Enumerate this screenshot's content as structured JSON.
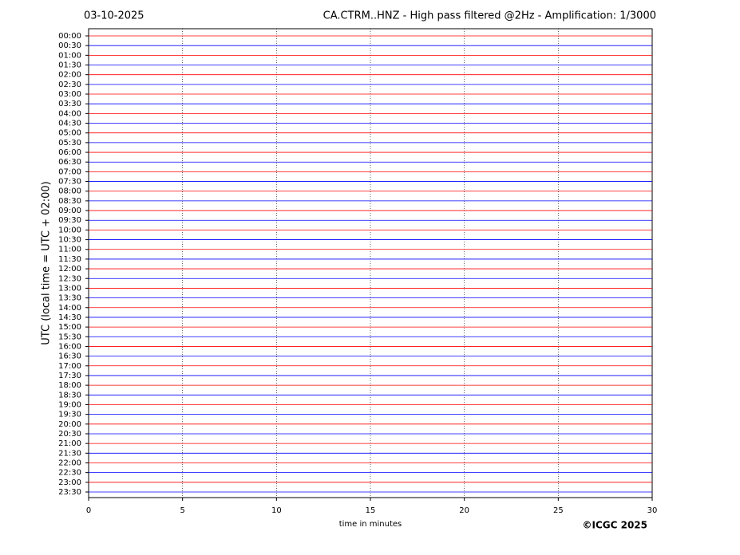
{
  "chart_data": {
    "type": "helicorder",
    "title_left": "03-10-2025",
    "title": "CA.CTRM..HNZ - High pass filtered @2Hz - Amplification: 1/3000",
    "ylabel": "UTC (local time = UTC + 02:00)",
    "xlabel": "time in minutes",
    "footer": "©ICGC 2025",
    "categories": [
      "00:00",
      "00:30",
      "01:00",
      "01:30",
      "02:00",
      "02:30",
      "03:00",
      "03:30",
      "04:00",
      "04:30",
      "05:00",
      "05:30",
      "06:00",
      "06:30",
      "07:00",
      "07:30",
      "08:00",
      "08:30",
      "09:00",
      "09:30",
      "10:00",
      "10:30",
      "11:00",
      "11:30",
      "12:00",
      "12:30",
      "13:00",
      "13:30",
      "14:00",
      "14:30",
      "15:00",
      "15:30",
      "16:00",
      "16:30",
      "17:00",
      "17:30",
      "18:00",
      "18:30",
      "19:00",
      "19:30",
      "20:00",
      "20:30",
      "21:00",
      "21:30",
      "22:00",
      "22:30",
      "23:00",
      "23:30"
    ],
    "colors": [
      "#ff0000",
      "#0000ff"
    ],
    "xlim": [
      0,
      30
    ],
    "xticks": [
      0,
      5,
      10,
      15,
      20,
      25,
      30
    ],
    "grid": true
  }
}
